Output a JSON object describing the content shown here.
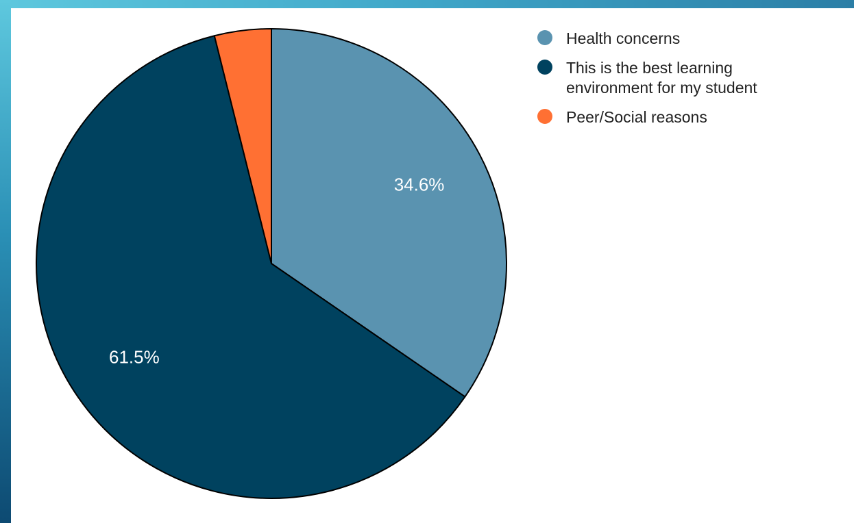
{
  "chart_data": {
    "type": "pie",
    "title": "",
    "slices": [
      {
        "label": "Health concerns",
        "value": 34.6,
        "value_label": "34.6%",
        "color": "#5a93b0"
      },
      {
        "label": "This is the best learning environment for my student",
        "value": 61.5,
        "value_label": "61.5%",
        "color": "#00425f"
      },
      {
        "label": "Peer/Social reasons",
        "value": 3.9,
        "value_label": "",
        "color": "#ff7033"
      }
    ],
    "legend_position": "top-right",
    "start_angle": "12 o'clock",
    "direction": "clockwise"
  }
}
